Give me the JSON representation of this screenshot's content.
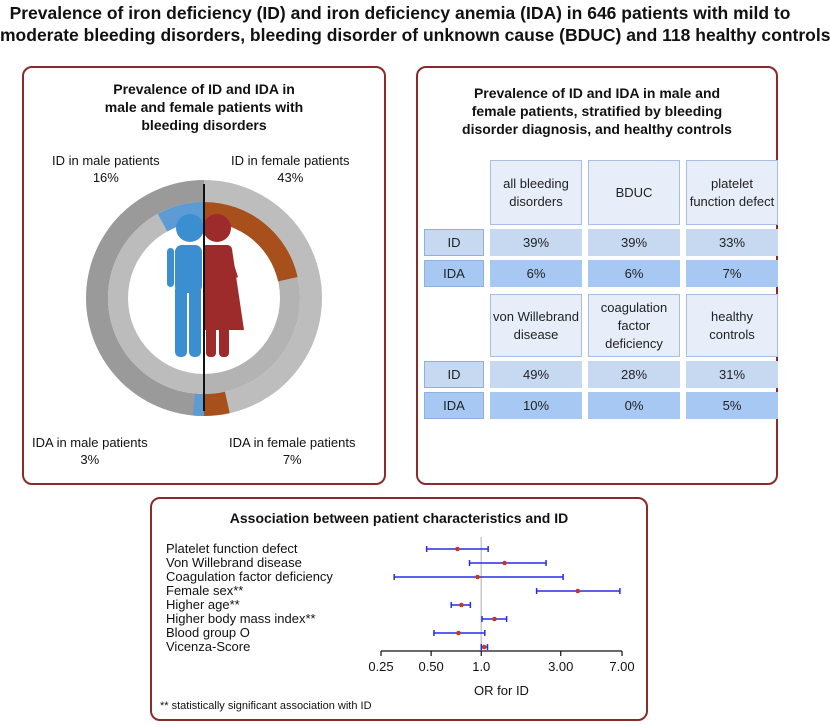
{
  "title": {
    "line1": "Prevalence of iron deficiency (ID) and iron deficiency anemia (IDA) in 646 patients with mild to",
    "line2": "moderate bleeding disorders, bleeding disorder of unknown cause (BDUC) and 118 healthy controls"
  },
  "left_panel": {
    "title_lines": [
      "Prevalence of ID and IDA in",
      "male and female patients with",
      "bleeding disorders"
    ],
    "labels": {
      "id_male": "ID in male patients",
      "id_male_pct": "16%",
      "id_female": "ID in female patients",
      "id_female_pct": "43%",
      "ida_male": "IDA in male patients",
      "ida_male_pct": "3%",
      "ida_female": "IDA in female patients",
      "ida_female_pct": "7%"
    },
    "donut": {
      "id_male_fraction": 0.16,
      "id_female_fraction": 0.43,
      "ida_male_fraction": 0.03,
      "ida_female_fraction": 0.07
    },
    "colors": {
      "male_base": "#9a9a9a",
      "female_base": "#bdbdbd",
      "male_highlight": "#5d9bd5",
      "female_highlight": "#a8501c",
      "male_figure": "#3b8fd1",
      "female_figure": "#9e2b2b"
    }
  },
  "right_panel": {
    "title_lines": [
      "Prevalence of ID and IDA in male and",
      "female patients, stratified by bleeding",
      "disorder diagnosis, and healthy controls"
    ],
    "table1": {
      "headers": [
        "all bleeding disorders",
        "BDUC",
        "platelet function defect"
      ],
      "rows": [
        {
          "label": "ID",
          "values": [
            "39%",
            "39%",
            "33%"
          ]
        },
        {
          "label": "IDA",
          "values": [
            "6%",
            "6%",
            "7%"
          ]
        }
      ]
    },
    "table2": {
      "headers": [
        "von Willebrand disease",
        "coagulation factor deficiency",
        "healthy controls"
      ],
      "rows": [
        {
          "label": "ID",
          "values": [
            "49%",
            "28%",
            "31%"
          ]
        },
        {
          "label": "IDA",
          "values": [
            "10%",
            "0%",
            "5%"
          ]
        }
      ]
    }
  },
  "bottom_panel": {
    "title": "Association between patient characteristics and ID",
    "footnote": "** statistically significant association with ID",
    "forest": {
      "type": "forest",
      "x_label": "OR for ID",
      "x_scale": "log",
      "x_range": [
        0.25,
        7.0
      ],
      "x_ticks": [
        0.25,
        0.5,
        1.0,
        3.0,
        7.0
      ],
      "x_tick_labels": [
        "0.25",
        "0.50",
        "1.0",
        "3.00",
        "7.00"
      ],
      "reference_line": 1.0,
      "rows": [
        {
          "label": "Platelet function defect",
          "or": 0.72,
          "lo": 0.47,
          "hi": 1.1
        },
        {
          "label": "Von Willebrand disease",
          "or": 1.38,
          "lo": 0.85,
          "hi": 2.45
        },
        {
          "label": "Coagulation factor deficiency",
          "or": 0.95,
          "lo": 0.3,
          "hi": 3.1
        },
        {
          "label": "Female sex**",
          "or": 3.8,
          "lo": 2.15,
          "hi": 6.8
        },
        {
          "label": "Higher age**",
          "or": 0.76,
          "lo": 0.66,
          "hi": 0.86
        },
        {
          "label": "Higher body mass index**",
          "or": 1.2,
          "lo": 1.01,
          "hi": 1.42
        },
        {
          "label": "Blood group O",
          "or": 0.73,
          "lo": 0.52,
          "hi": 1.05
        },
        {
          "label": "Vicenza-Score",
          "or": 1.04,
          "lo": 1.0,
          "hi": 1.09
        }
      ]
    }
  }
}
